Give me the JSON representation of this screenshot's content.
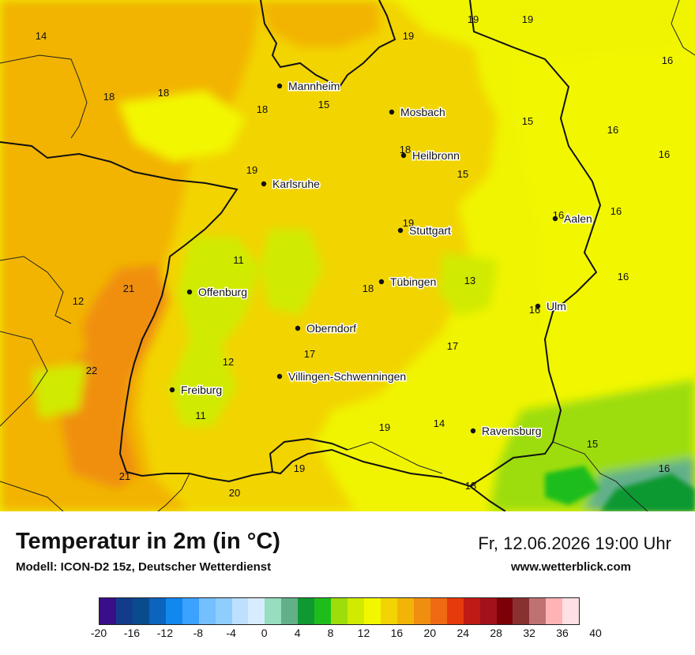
{
  "map": {
    "cities": [
      {
        "name": "Mannheim"
      },
      {
        "name": "Mosbach"
      },
      {
        "name": "Heilbronn"
      },
      {
        "name": "Karlsruhe"
      },
      {
        "name": "Aalen"
      },
      {
        "name": "Stuttgart"
      },
      {
        "name": "Offenburg"
      },
      {
        "name": "Tübingen"
      },
      {
        "name": "Ulm"
      },
      {
        "name": "Oberndorf"
      },
      {
        "name": "Villingen-Schwenningen"
      },
      {
        "name": "Freiburg"
      },
      {
        "name": "Ravensburg"
      }
    ],
    "values": [
      "14",
      "19",
      "19",
      "19",
      "16",
      "18",
      "18",
      "18",
      "15",
      "15",
      "16",
      "16",
      "18",
      "15",
      "19",
      "16",
      "19",
      "16",
      "11",
      "13",
      "16",
      "12",
      "21",
      "18",
      "16",
      "17",
      "12",
      "17",
      "22",
      "11",
      "19",
      "14",
      "15",
      "21",
      "19",
      "20",
      "16",
      "18"
    ]
  },
  "footer": {
    "title": "Temperatur in 2m (in °C)",
    "model": "Modell: ICON-D2 15z, Deutscher Wetterdienst",
    "datetime": "Fr, 12.06.2026 19:00 Uhr",
    "website": "www.wetterblick.com"
  },
  "legend": {
    "colors": [
      "#3a0e88",
      "#123c8a",
      "#0a4b8e",
      "#0b64bd",
      "#1188ee",
      "#3ba2ff",
      "#74bfff",
      "#8fcdfd",
      "#bde0ff",
      "#d8ecff",
      "#97ddc0",
      "#62b08a",
      "#0f9933",
      "#1fbd1a",
      "#9ddd0a",
      "#d0ea00",
      "#f2f700",
      "#f2d405",
      "#f2b406",
      "#f08f0f",
      "#ef6a12",
      "#e73a0c",
      "#c01a14",
      "#a3121a",
      "#7d0008",
      "#893030",
      "#c07272",
      "#ffb3b3",
      "#ffe0e4"
    ],
    "ticks": [
      "-20",
      "-16",
      "-12",
      "-8",
      "-4",
      "0",
      "4",
      "8",
      "12",
      "16",
      "20",
      "24",
      "28",
      "32",
      "36",
      "40"
    ]
  }
}
